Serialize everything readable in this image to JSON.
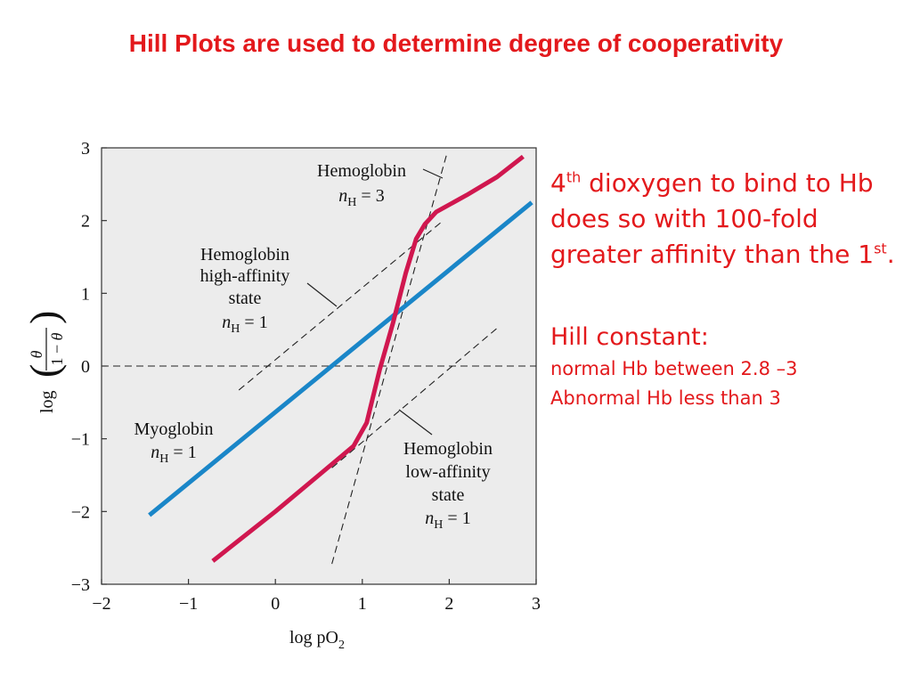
{
  "slide": {
    "title": "Hill Plots are used to determine degree of cooperativity"
  },
  "notes": {
    "affinity": {
      "n": "4",
      "n_sup": "th",
      "text1": " dioxygen to bind to Hb does so with 100-fold greater affinity than the 1",
      "ref_sup": "st",
      "end": "."
    },
    "hill_heading": "Hill constant:",
    "hill_lines": [
      "normal Hb between 2.8 –3",
      "Abnormal Hb less than 3"
    ]
  },
  "chart_data": {
    "type": "line",
    "xlabel": "log pO₂",
    "ylabel": "log(θ / (1 − θ))",
    "xlim": [
      -2,
      3
    ],
    "ylim": [
      -3,
      3
    ],
    "x_ticks": [
      "−2",
      "−1",
      "0",
      "1",
      "2",
      "3"
    ],
    "y_ticks": [
      "3",
      "2",
      "1",
      "0",
      "−1",
      "−2",
      "−3"
    ],
    "grid": false,
    "legend": "none",
    "background": "#ececec",
    "series": [
      {
        "name": "Myoglobin",
        "n_H": "1",
        "color": "#1a86c8",
        "x": [
          -1.45,
          2.95
        ],
        "y": [
          -2.05,
          2.25
        ]
      },
      {
        "name": "Hemoglobin",
        "n_H": "3",
        "color": "#d0174f",
        "x": [
          -0.72,
          0.0,
          0.5,
          0.9,
          1.05,
          1.2,
          1.35,
          1.5,
          1.62,
          1.72,
          1.85,
          2.2,
          2.55,
          2.85
        ],
        "y": [
          -2.68,
          -2.0,
          -1.5,
          -1.1,
          -0.78,
          -0.05,
          0.58,
          1.28,
          1.75,
          1.95,
          2.12,
          2.35,
          2.6,
          2.88
        ]
      }
    ],
    "reference_lines": [
      {
        "name": "baseline",
        "x": [
          -2,
          3
        ],
        "y": [
          0,
          0
        ]
      },
      {
        "name": "high-affinity",
        "x": [
          -0.42,
          1.9
        ],
        "y": [
          -0.33,
          1.97
        ]
      },
      {
        "name": "low-affinity",
        "x": [
          0.65,
          2.55
        ],
        "y": [
          -1.4,
          0.52
        ]
      },
      {
        "name": "nH3-slope",
        "x": [
          0.65,
          1.98
        ],
        "y": [
          -2.72,
          2.95
        ]
      }
    ],
    "annotations": [
      {
        "name": "hemoglobin-nh3",
        "lines": [
          "Hemoglobin",
          "n_H = 3"
        ]
      },
      {
        "name": "high-affinity",
        "lines": [
          "Hemoglobin",
          "high-affinity",
          "state",
          "n_H = 1"
        ]
      },
      {
        "name": "myoglobin",
        "lines": [
          "Myoglobin",
          "n_H = 1"
        ]
      },
      {
        "name": "low-affinity",
        "lines": [
          "Hemoglobin",
          "low-affinity",
          "state",
          "n_H = 1"
        ]
      }
    ]
  }
}
